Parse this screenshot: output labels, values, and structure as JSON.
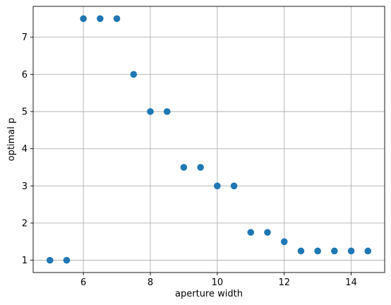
{
  "chart_data": {
    "type": "scatter",
    "title": "",
    "xlabel": "aperture width",
    "ylabel": "optimal p",
    "xlim": [
      4.5,
      15.0
    ],
    "ylim": [
      0.67,
      7.83
    ],
    "xticks": [
      6,
      8,
      10,
      12,
      14
    ],
    "yticks": [
      1,
      2,
      3,
      4,
      5,
      6,
      7
    ],
    "grid": true,
    "marker_color": "#1f77b4",
    "series": [
      {
        "x": [
          5.0,
          5.5,
          6.0,
          6.5,
          7.0,
          7.5,
          8.0,
          8.5,
          9.0,
          9.5,
          10.0,
          10.5,
          11.0,
          11.5,
          12.0,
          12.5,
          13.0,
          13.5,
          14.0,
          14.5
        ],
        "y": [
          1.0,
          1.0,
          7.5,
          7.5,
          7.5,
          6.0,
          5.0,
          5.0,
          3.5,
          3.5,
          3.0,
          3.0,
          1.75,
          1.75,
          1.5,
          1.25,
          1.25,
          1.25,
          1.25,
          1.25
        ]
      }
    ]
  }
}
